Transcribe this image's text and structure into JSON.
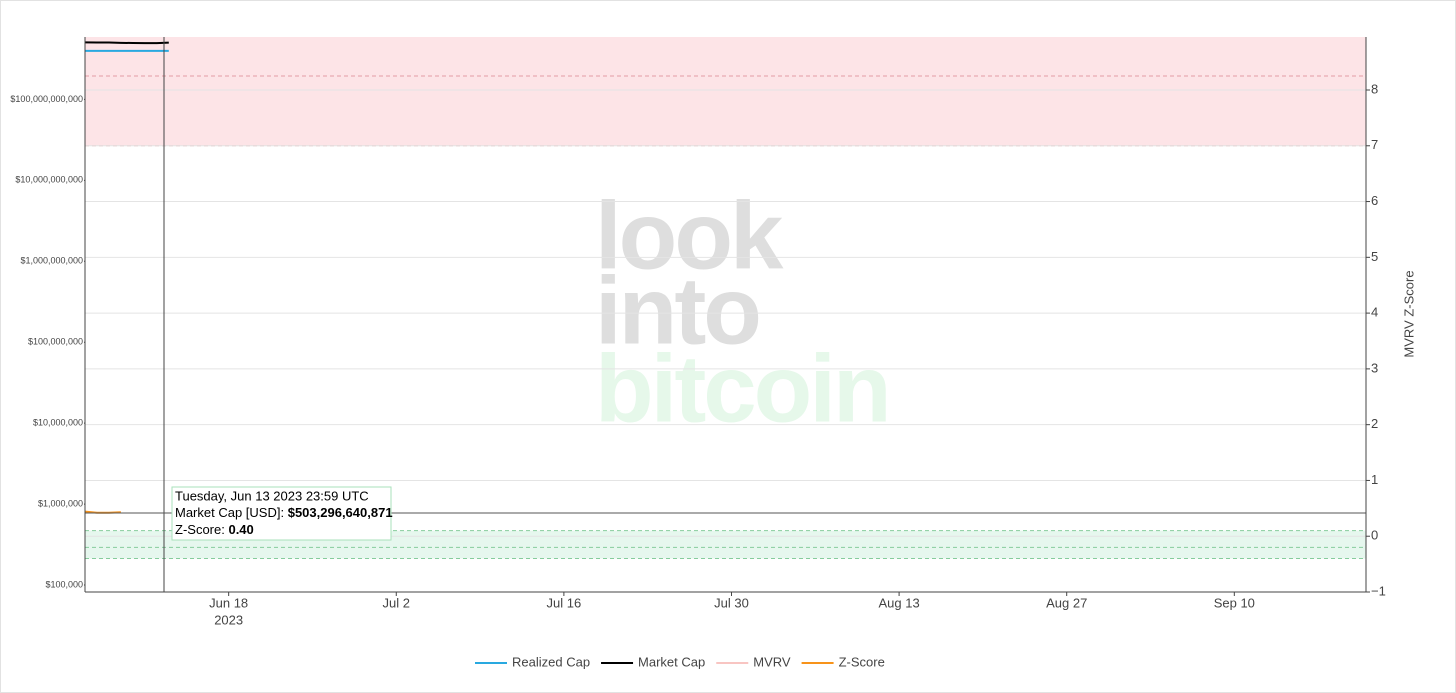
{
  "chart_data": {
    "type": "line",
    "x": [
      "2023-06-06",
      "2023-06-07",
      "2023-06-08",
      "2023-06-09",
      "2023-06-10",
      "2023-06-11",
      "2023-06-12",
      "2023-06-13"
    ],
    "xlim": [
      "2023-06-06",
      "2023-09-21"
    ],
    "xticks": [
      {
        "value": "2023-06-18",
        "label": "Jun 18"
      },
      {
        "value": "2023-07-02",
        "label": "Jul 2"
      },
      {
        "value": "2023-07-16",
        "label": "Jul 16"
      },
      {
        "value": "2023-07-30",
        "label": "Jul 30"
      },
      {
        "value": "2023-08-13",
        "label": "Aug 13"
      },
      {
        "value": "2023-08-27",
        "label": "Aug 27"
      },
      {
        "value": "2023-09-10",
        "label": "Sep 10"
      }
    ],
    "xtick_year": "2023",
    "ylim": [
      82000,
      590000000000
    ],
    "log_y": true,
    "yticks": [
      {
        "value": 100000,
        "label": "$100,000"
      },
      {
        "value": 1000000,
        "label": "$1,000,000"
      },
      {
        "value": 10000000,
        "label": "$10,000,000"
      },
      {
        "value": 100000000,
        "label": "$100,000,000"
      },
      {
        "value": 1000000000,
        "label": "$1,000,000,000"
      },
      {
        "value": 10000000000,
        "label": "$10,000,000,000"
      },
      {
        "value": 100000000000,
        "label": "$100,000,000,000"
      }
    ],
    "y2label": "MVRV Z-Score",
    "y2lim": [
      -1,
      8.95
    ],
    "y2ticks": [
      {
        "value": -1,
        "label": "−1"
      },
      0,
      1,
      2,
      3,
      4,
      5,
      6,
      7,
      8
    ],
    "grid": true,
    "bands": [
      {
        "from": 7,
        "to": 8.95,
        "color": "#fde4e7",
        "line_color": "#e39ba4",
        "dashes": [
          8.25,
          7
        ]
      },
      {
        "from": -0.4,
        "to": 0.1,
        "color": "#e6f7ee",
        "line_color": "#86cc9c",
        "dashes": [
          0.1,
          -0.2,
          -0.4
        ]
      }
    ],
    "series": [
      {
        "name": "Realized Cap",
        "color": "#29a9e0",
        "visible": true,
        "values": [
          398000000000,
          398000000000,
          398000000000,
          398000000000,
          398000000000,
          398000000000,
          398000000000,
          398000000000
        ]
      },
      {
        "name": "Market Cap",
        "color": "#000000",
        "visible": true,
        "values": [
          506000000000,
          505000000000,
          504000000000,
          500000000000,
          497000000000,
          495000000000,
          495000000000,
          503296640871
        ]
      },
      {
        "name": "MVRV",
        "color": "#f4a09a",
        "visible": false,
        "values": [
          null,
          null,
          null,
          null,
          null,
          null,
          null,
          null
        ]
      },
      {
        "name": "Z-Score",
        "color": "#f7931a",
        "visible": true,
        "axis": "y2",
        "values": [
          0.44,
          0.42,
          0.42,
          0.43,
          null,
          null,
          null,
          null
        ]
      }
    ],
    "watermark": [
      "look",
      "into",
      "bitcoin"
    ],
    "tooltip": {
      "title": "Tuesday, Jun 13 2023 23:59 UTC",
      "items": [
        {
          "label": "Market Cap [USD]:",
          "value": "$503,296,640,871"
        },
        {
          "label": "Z-Score:",
          "value": "0.40"
        }
      ]
    }
  }
}
